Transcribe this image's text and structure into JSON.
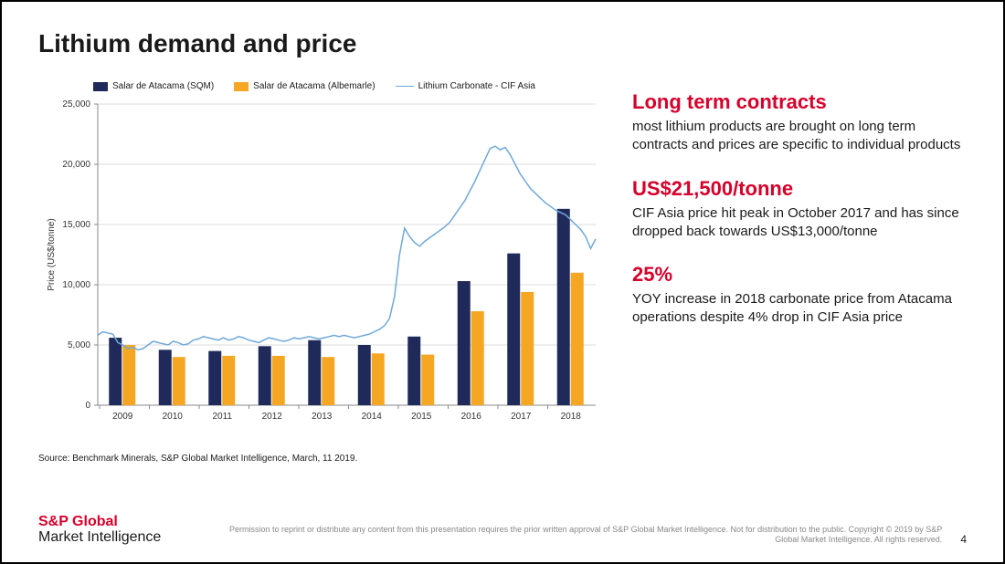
{
  "title": "Lithium demand and price",
  "chart": {
    "type": "bar+line",
    "categories": [
      "2009",
      "2010",
      "2011",
      "2012",
      "2013",
      "2014",
      "2015",
      "2016",
      "2017",
      "2018"
    ],
    "series": [
      {
        "key": "sqm",
        "label": "Salar de Atacama (SQM)",
        "type": "bar",
        "color": "#1f2a5b",
        "values": [
          5600,
          4600,
          4500,
          4900,
          5400,
          5000,
          5700,
          10300,
          12600,
          16300
        ]
      },
      {
        "key": "albemarle",
        "label": "Salar de Atacama (Albemarle)",
        "type": "bar",
        "color": "#f5a623",
        "values": [
          5000,
          4000,
          4100,
          4100,
          4000,
          4300,
          4200,
          7800,
          9400,
          11000
        ]
      },
      {
        "key": "cif",
        "label": "Lithium Carbonate - CIF Asia",
        "type": "line",
        "color": "#6fa8d8",
        "points": [
          [
            0,
            5800
          ],
          [
            1,
            6100
          ],
          [
            2,
            6000
          ],
          [
            3,
            5900
          ],
          [
            4,
            5200
          ],
          [
            5,
            5000
          ],
          [
            6,
            4700
          ],
          [
            7,
            4800
          ],
          [
            8,
            4600
          ],
          [
            9,
            4700
          ],
          [
            10,
            5000
          ],
          [
            11,
            5300
          ],
          [
            12,
            5200
          ],
          [
            13,
            5100
          ],
          [
            14,
            5000
          ],
          [
            15,
            5300
          ],
          [
            16,
            5200
          ],
          [
            17,
            5000
          ],
          [
            18,
            5100
          ],
          [
            19,
            5400
          ],
          [
            20,
            5500
          ],
          [
            21,
            5700
          ],
          [
            22,
            5600
          ],
          [
            23,
            5500
          ],
          [
            24,
            5400
          ],
          [
            25,
            5600
          ],
          [
            26,
            5400
          ],
          [
            27,
            5500
          ],
          [
            28,
            5700
          ],
          [
            29,
            5600
          ],
          [
            30,
            5400
          ],
          [
            31,
            5300
          ],
          [
            32,
            5200
          ],
          [
            33,
            5400
          ],
          [
            34,
            5600
          ],
          [
            35,
            5500
          ],
          [
            36,
            5400
          ],
          [
            37,
            5300
          ],
          [
            38,
            5400
          ],
          [
            39,
            5600
          ],
          [
            40,
            5500
          ],
          [
            41,
            5600
          ],
          [
            42,
            5700
          ],
          [
            43,
            5600
          ],
          [
            44,
            5500
          ],
          [
            45,
            5600
          ],
          [
            46,
            5700
          ],
          [
            47,
            5800
          ],
          [
            48,
            5700
          ],
          [
            49,
            5800
          ],
          [
            50,
            5700
          ],
          [
            51,
            5600
          ],
          [
            52,
            5700
          ],
          [
            53,
            5800
          ],
          [
            54,
            5900
          ],
          [
            55,
            6100
          ],
          [
            56,
            6300
          ],
          [
            57,
            6600
          ],
          [
            58,
            7200
          ],
          [
            59,
            9000
          ],
          [
            60,
            12500
          ],
          [
            61,
            14700
          ],
          [
            62,
            14000
          ],
          [
            63,
            13500
          ],
          [
            64,
            13200
          ],
          [
            65,
            13600
          ],
          [
            66,
            13900
          ],
          [
            67,
            14200
          ],
          [
            68,
            14500
          ],
          [
            69,
            14800
          ],
          [
            70,
            15200
          ],
          [
            71,
            15800
          ],
          [
            72,
            16400
          ],
          [
            73,
            17000
          ],
          [
            74,
            17800
          ],
          [
            75,
            18600
          ],
          [
            76,
            19500
          ],
          [
            77,
            20400
          ],
          [
            78,
            21300
          ],
          [
            79,
            21500
          ],
          [
            80,
            21200
          ],
          [
            81,
            21400
          ],
          [
            82,
            20800
          ],
          [
            83,
            20000
          ],
          [
            84,
            19200
          ],
          [
            85,
            18600
          ],
          [
            86,
            18000
          ],
          [
            87,
            17600
          ],
          [
            88,
            17200
          ],
          [
            89,
            16800
          ],
          [
            90,
            16500
          ],
          [
            91,
            16200
          ],
          [
            92,
            16000
          ],
          [
            93,
            15800
          ],
          [
            94,
            15400
          ],
          [
            95,
            15000
          ],
          [
            96,
            14600
          ],
          [
            97,
            14000
          ],
          [
            98,
            13000
          ],
          [
            99,
            13800
          ]
        ]
      }
    ],
    "ylim": [
      0,
      25000
    ],
    "ytick_step": 5000,
    "ylabel": "Price (US$/tonne)",
    "axis_color": "#888",
    "grid_color": "#d0d0d0",
    "tick_font_size": 10,
    "ylabel_font_size": 10,
    "bar_group_width": 0.55,
    "background": "#ffffff"
  },
  "callouts": [
    {
      "head": "Long term contracts",
      "body": "most lithium products are brought on long term contracts and prices are specific to individual products"
    },
    {
      "head": "US$21,500/tonne",
      "body": "CIF Asia price hit peak in October 2017 and has since dropped back towards US$13,000/tonne"
    },
    {
      "head": "25%",
      "body": "YOY increase in 2018 carbonate price from Atacama operations despite 4% drop in CIF Asia price"
    }
  ],
  "source": "Source: Benchmark Minerals, S&P Global Market Intelligence, March, 11 2019.",
  "brand": {
    "line1": "S&P Global",
    "line2": "Market Intelligence"
  },
  "disclaimer": "Permission to reprint or distribute any content from this presentation requires the prior written approval of S&P Global Market Intelligence. Not for distribution to the public. Copyright © 2019 by S&P Global Market Intelligence. All rights reserved.",
  "page_number": "4"
}
